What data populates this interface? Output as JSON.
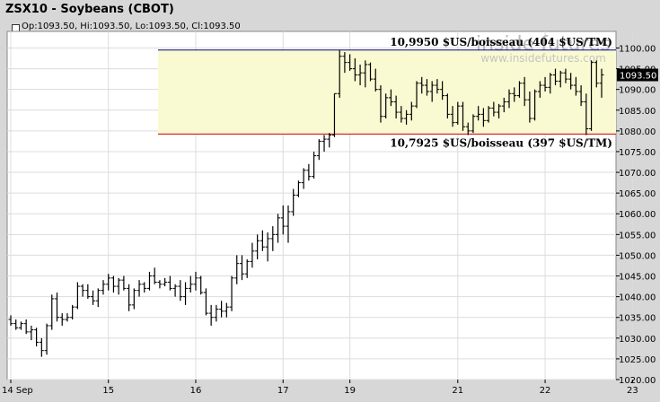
{
  "header": {
    "title": "ZSX10 - Soybeans (CBOT)",
    "quote": "Op:1093.50, Hi:1093.50, Lo:1093.50, Cl:1093.50"
  },
  "watermark": {
    "line1": "inside futures",
    "line2": "www.insidefutures.com"
  },
  "chart_data": {
    "type": "bar",
    "style": "ohlc",
    "title": "ZSX10 - Soybeans (CBOT)",
    "xlabel": "",
    "ylabel": "",
    "ylim": [
      1020,
      1104
    ],
    "y_ticks": [
      "1020.00",
      "1025.00",
      "1030.00",
      "1035.00",
      "1040.00",
      "1045.00",
      "1050.00",
      "1055.00",
      "1060.00",
      "1065.00",
      "1070.00",
      "1075.00",
      "1080.00",
      "1085.00",
      "1090.00",
      "1095.00",
      "1100.00"
    ],
    "x_ticks": [
      {
        "label": "14 Sep",
        "bar": 0
      },
      {
        "label": "15",
        "bar": 19
      },
      {
        "label": "16",
        "bar": 36
      },
      {
        "label": "17",
        "bar": 53
      },
      {
        "label": "19",
        "bar": 66
      },
      {
        "label": "21",
        "bar": 87
      },
      {
        "label": "22",
        "bar": 104
      },
      {
        "label": "23",
        "bar": 121
      }
    ],
    "grid": true,
    "last_price": "1093.50",
    "colors": {
      "plot_bg": "#ffffff",
      "band": "#fafad2",
      "upper_line": "#000080",
      "lower_line": "#cc0000",
      "price_label_bg": "#000000",
      "bars": "#000000"
    },
    "annotations": [
      {
        "text": "10,9950 $US/boisseau (404 $US/TM)",
        "y": 1099.5,
        "line_color": "#000080"
      },
      {
        "text": "10,7925 $US/boisseau (397 $US/TM)",
        "y": 1079.25,
        "line_color": "#cc0000"
      }
    ],
    "range_band": {
      "from": 1079.25,
      "to": 1099.5,
      "start_bar": 29
    },
    "ohlc": [
      [
        1034.5,
        1035.5,
        1033,
        1033.5
      ],
      [
        1033.5,
        1034.5,
        1032,
        1032.5
      ],
      [
        1032.5,
        1034,
        1032,
        1033.5
      ],
      [
        1033.5,
        1034.5,
        1031,
        1031.5
      ],
      [
        1031.5,
        1033,
        1029.5,
        1032
      ],
      [
        1032,
        1032.5,
        1028,
        1029
      ],
      [
        1029,
        1030,
        1025.5,
        1027
      ],
      [
        1027,
        1033.5,
        1026,
        1033
      ],
      [
        1033,
        1040.5,
        1032,
        1039.5
      ],
      [
        1039.5,
        1041,
        1034,
        1035
      ],
      [
        1035,
        1036,
        1033,
        1034.5
      ],
      [
        1034.5,
        1036,
        1034,
        1035
      ],
      [
        1035,
        1038,
        1034.5,
        1037.5
      ],
      [
        1037.5,
        1043.5,
        1037,
        1042.5
      ],
      [
        1042.5,
        1043,
        1040,
        1041.5
      ],
      [
        1041.5,
        1043,
        1039.5,
        1040
      ],
      [
        1040,
        1041.5,
        1038,
        1039
      ],
      [
        1039,
        1042,
        1037.5,
        1041.5
      ],
      [
        1041.5,
        1044,
        1040.5,
        1043
      ],
      [
        1043,
        1045.5,
        1041.5,
        1044.5
      ],
      [
        1044.5,
        1045,
        1041,
        1042.5
      ],
      [
        1042.5,
        1044.5,
        1040.5,
        1044
      ],
      [
        1044,
        1045,
        1041.5,
        1042
      ],
      [
        1042,
        1043,
        1036.5,
        1038
      ],
      [
        1038,
        1042,
        1037,
        1041.5
      ],
      [
        1041.5,
        1044,
        1040,
        1043
      ],
      [
        1043,
        1043.5,
        1041,
        1042
      ],
      [
        1042,
        1046,
        1041.5,
        1045
      ],
      [
        1045,
        1047,
        1043,
        1043.5
      ],
      [
        1043.5,
        1044,
        1042,
        1043
      ],
      [
        1043,
        1044.5,
        1042.5,
        1043.5
      ],
      [
        1043.5,
        1045,
        1041.5,
        1042
      ],
      [
        1042,
        1043,
        1040,
        1042.5
      ],
      [
        1042.5,
        1044,
        1039,
        1040
      ],
      [
        1040,
        1043.5,
        1038,
        1042
      ],
      [
        1042,
        1045,
        1041,
        1043
      ],
      [
        1043,
        1046,
        1041.5,
        1044.5
      ],
      [
        1044.5,
        1045,
        1040.5,
        1041
      ],
      [
        1041,
        1042,
        1035.5,
        1036
      ],
      [
        1036,
        1038,
        1033,
        1035
      ],
      [
        1035,
        1038,
        1034,
        1037
      ],
      [
        1037,
        1039,
        1035,
        1036.5
      ],
      [
        1036.5,
        1038.5,
        1035,
        1037.5
      ],
      [
        1037.5,
        1045,
        1036.5,
        1044.5
      ],
      [
        1044.5,
        1050,
        1043,
        1048
      ],
      [
        1048,
        1050,
        1044,
        1045.5
      ],
      [
        1045.5,
        1049,
        1044.5,
        1048.5
      ],
      [
        1048.5,
        1053,
        1047,
        1051
      ],
      [
        1051,
        1055,
        1049,
        1053.5
      ],
      [
        1053.5,
        1056,
        1051,
        1052
      ],
      [
        1052,
        1055.5,
        1048.5,
        1054
      ],
      [
        1054,
        1057,
        1051,
        1055
      ],
      [
        1055,
        1060,
        1053,
        1059
      ],
      [
        1059,
        1062,
        1055,
        1057
      ],
      [
        1057,
        1062,
        1053,
        1060.5
      ],
      [
        1060.5,
        1066,
        1059.5,
        1064.5
      ],
      [
        1064.5,
        1068,
        1064,
        1067.5
      ],
      [
        1067.5,
        1071,
        1066,
        1070.5
      ],
      [
        1070.5,
        1072,
        1068,
        1069
      ],
      [
        1069,
        1075,
        1068.5,
        1074
      ],
      [
        1074,
        1078,
        1073,
        1077.5
      ],
      [
        1077.5,
        1079,
        1075,
        1078
      ],
      [
        1078,
        1079.5,
        1076,
        1079
      ],
      [
        1079,
        1089,
        1078.5,
        1089
      ],
      [
        1089,
        1099.5,
        1088,
        1098
      ],
      [
        1098,
        1099,
        1094,
        1096.5
      ],
      [
        1096.5,
        1098.5,
        1094.5,
        1095
      ],
      [
        1095,
        1097.5,
        1092,
        1093.5
      ],
      [
        1093.5,
        1096,
        1091,
        1094
      ],
      [
        1094,
        1097,
        1090.5,
        1096
      ],
      [
        1096,
        1096.5,
        1092,
        1092.5
      ],
      [
        1092.5,
        1095,
        1089.5,
        1090
      ],
      [
        1090,
        1091,
        1082,
        1083.5
      ],
      [
        1083.5,
        1089,
        1083,
        1088
      ],
      [
        1088,
        1090,
        1086,
        1087
      ],
      [
        1087,
        1088.5,
        1083,
        1084.5
      ],
      [
        1084.5,
        1086,
        1082,
        1083
      ],
      [
        1083,
        1085,
        1081.5,
        1084
      ],
      [
        1084,
        1087,
        1082.5,
        1086
      ],
      [
        1086,
        1092,
        1085.5,
        1091.5
      ],
      [
        1091.5,
        1093,
        1089,
        1091
      ],
      [
        1091,
        1092.5,
        1088.5,
        1089.5
      ],
      [
        1089.5,
        1092,
        1087,
        1091
      ],
      [
        1091,
        1092.5,
        1089,
        1090
      ],
      [
        1090,
        1092,
        1087.5,
        1088.5
      ],
      [
        1088.5,
        1089,
        1083,
        1084
      ],
      [
        1084,
        1086,
        1081,
        1082
      ],
      [
        1082,
        1087,
        1081.5,
        1086
      ],
      [
        1086,
        1087,
        1080,
        1081
      ],
      [
        1081,
        1082,
        1079,
        1080
      ],
      [
        1080,
        1084,
        1079.5,
        1083.5
      ],
      [
        1083.5,
        1086,
        1082.5,
        1084
      ],
      [
        1084,
        1085.5,
        1081,
        1082.5
      ],
      [
        1082.5,
        1086,
        1082,
        1085.5
      ],
      [
        1085.5,
        1087,
        1083.5,
        1084.5
      ],
      [
        1084.5,
        1086.5,
        1083,
        1086
      ],
      [
        1086,
        1088,
        1084.5,
        1087
      ],
      [
        1087,
        1090,
        1085.5,
        1089
      ],
      [
        1089,
        1090.5,
        1087,
        1088.5
      ],
      [
        1088.5,
        1092,
        1088,
        1091.5
      ],
      [
        1091.5,
        1093,
        1086,
        1087.5
      ],
      [
        1087.5,
        1089.5,
        1082,
        1083
      ],
      [
        1083,
        1090,
        1082.5,
        1089.5
      ],
      [
        1089.5,
        1092,
        1088,
        1091
      ],
      [
        1091,
        1093,
        1089.5,
        1090.5
      ],
      [
        1090.5,
        1094,
        1089,
        1093.5
      ],
      [
        1093.5,
        1095,
        1091,
        1092
      ],
      [
        1092,
        1094.5,
        1090.5,
        1094
      ],
      [
        1094,
        1095,
        1091.5,
        1092.5
      ],
      [
        1092.5,
        1094,
        1090,
        1091
      ],
      [
        1091,
        1093,
        1088.5,
        1089.5
      ],
      [
        1089.5,
        1091,
        1086,
        1087
      ],
      [
        1087,
        1089,
        1079,
        1080.5
      ],
      [
        1080.5,
        1097,
        1080,
        1096.5
      ],
      [
        1096.5,
        1097,
        1090.5,
        1091.5
      ],
      [
        1091.5,
        1095,
        1088,
        1093.5
      ]
    ]
  }
}
